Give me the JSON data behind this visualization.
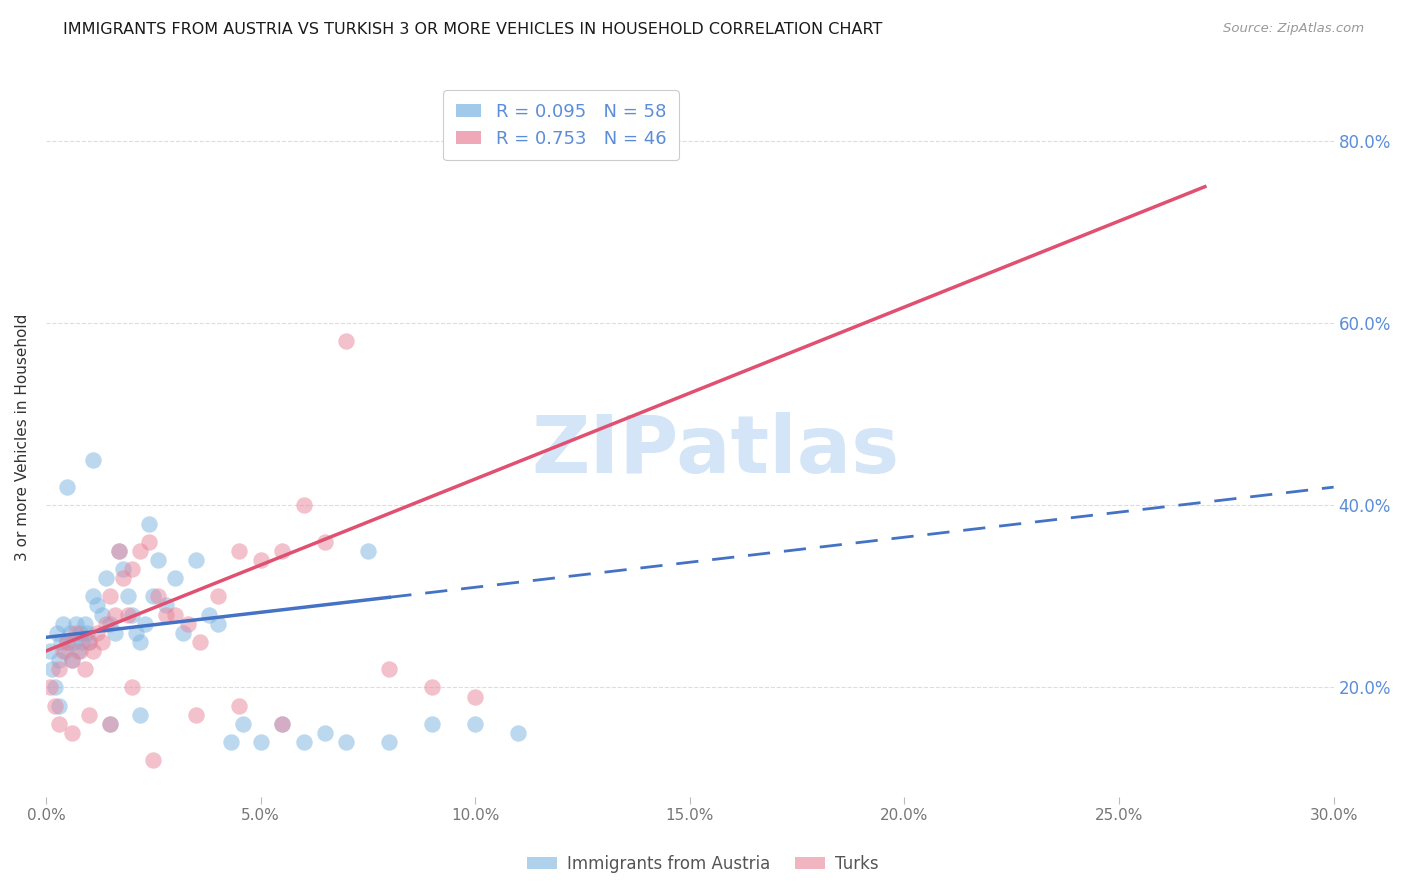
{
  "title": "IMMIGRANTS FROM AUSTRIA VS TURKISH 3 OR MORE VEHICLES IN HOUSEHOLD CORRELATION CHART",
  "source": "Source: ZipAtlas.com",
  "ylabel_label": "3 or more Vehicles in Household",
  "legend_label1": "Immigrants from Austria",
  "legend_label2": "Turks",
  "blue_color": "#7ab3e0",
  "pink_color": "#e8849a",
  "blue_line_color": "#4472c4",
  "pink_line_color": "#e05070",
  "blue_text_color": "#5b8dd9",
  "grid_color": "#dddddd",
  "watermark_text": "ZIPatlas",
  "watermark_color": "#c8dff5",
  "xlim": [
    0.0,
    30.0
  ],
  "ylim": [
    8.0,
    87.0
  ],
  "R_blue": 0.095,
  "N_blue": 58,
  "R_pink": 0.753,
  "N_pink": 46,
  "intercept_blue": 25.5,
  "slope_blue_solid_end": 8.0,
  "slope_blue_dashed_end": 30.0,
  "blue_y_at_0": 25.5,
  "blue_y_at_8": 28.0,
  "blue_y_at_30": 42.0,
  "pink_y_at_0": 24.0,
  "pink_y_at_27": 75.0,
  "xtick_vals": [
    0,
    5,
    10,
    15,
    20,
    25,
    30
  ],
  "xtick_labels": [
    "0.0%",
    "5.0%",
    "10.0%",
    "15.0%",
    "20.0%",
    "25.0%",
    "30.0%"
  ],
  "ytick_vals": [
    20,
    40,
    60,
    80
  ],
  "ytick_labels": [
    "20.0%",
    "40.0%",
    "60.0%",
    "80.0%"
  ],
  "blue_x": [
    0.1,
    0.15,
    0.2,
    0.25,
    0.3,
    0.35,
    0.4,
    0.45,
    0.5,
    0.55,
    0.6,
    0.65,
    0.7,
    0.75,
    0.8,
    0.85,
    0.9,
    0.95,
    1.0,
    1.1,
    1.2,
    1.3,
    1.4,
    1.5,
    1.6,
    1.7,
    1.8,
    1.9,
    2.0,
    2.1,
    2.2,
    2.3,
    2.4,
    2.5,
    2.6,
    2.8,
    3.0,
    3.2,
    3.5,
    3.8,
    4.0,
    4.3,
    4.6,
    5.0,
    5.5,
    6.0,
    6.5,
    7.0,
    7.5,
    8.0,
    9.0,
    10.0,
    11.0,
    1.1,
    0.5,
    0.3,
    1.5,
    2.2
  ],
  "blue_y": [
    24.0,
    22.0,
    20.0,
    26.0,
    23.0,
    25.0,
    27.0,
    24.0,
    25.0,
    26.0,
    23.0,
    25.0,
    27.0,
    24.0,
    26.0,
    25.0,
    27.0,
    26.0,
    25.0,
    30.0,
    29.0,
    28.0,
    32.0,
    27.0,
    26.0,
    35.0,
    33.0,
    30.0,
    28.0,
    26.0,
    25.0,
    27.0,
    38.0,
    30.0,
    34.0,
    29.0,
    32.0,
    26.0,
    34.0,
    28.0,
    27.0,
    14.0,
    16.0,
    14.0,
    16.0,
    14.0,
    15.0,
    14.0,
    35.0,
    14.0,
    16.0,
    16.0,
    15.0,
    45.0,
    42.0,
    18.0,
    16.0,
    17.0
  ],
  "pink_x": [
    0.1,
    0.2,
    0.3,
    0.4,
    0.5,
    0.6,
    0.7,
    0.8,
    0.9,
    1.0,
    1.1,
    1.2,
    1.3,
    1.4,
    1.5,
    1.6,
    1.7,
    1.8,
    1.9,
    2.0,
    2.2,
    2.4,
    2.6,
    2.8,
    3.0,
    3.3,
    3.6,
    4.0,
    4.5,
    5.0,
    5.5,
    6.0,
    6.5,
    7.0,
    8.0,
    9.0,
    10.0,
    0.3,
    0.6,
    1.0,
    1.5,
    2.0,
    2.5,
    3.5,
    4.5,
    5.5
  ],
  "pink_y": [
    20.0,
    18.0,
    22.0,
    24.0,
    25.0,
    23.0,
    26.0,
    24.0,
    22.0,
    25.0,
    24.0,
    26.0,
    25.0,
    27.0,
    30.0,
    28.0,
    35.0,
    32.0,
    28.0,
    33.0,
    35.0,
    36.0,
    30.0,
    28.0,
    28.0,
    27.0,
    25.0,
    30.0,
    35.0,
    34.0,
    35.0,
    40.0,
    36.0,
    58.0,
    22.0,
    20.0,
    19.0,
    16.0,
    15.0,
    17.0,
    16.0,
    20.0,
    12.0,
    17.0,
    18.0,
    16.0
  ]
}
